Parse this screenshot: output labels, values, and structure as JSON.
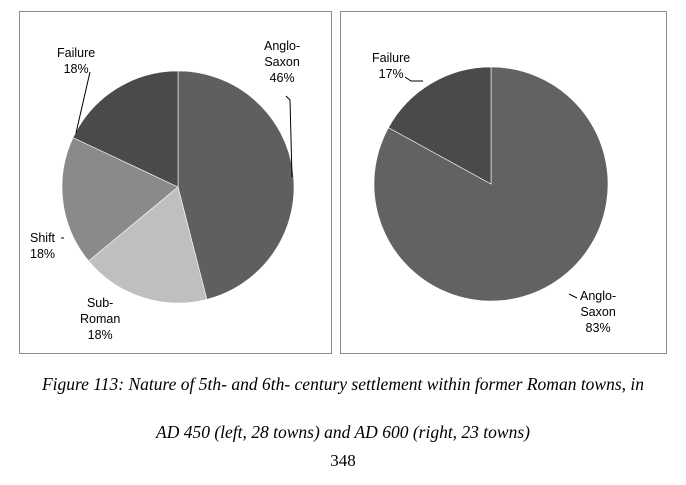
{
  "chart_data": [
    {
      "type": "pie",
      "title": "",
      "slices": [
        {
          "label": "Anglo-Saxon",
          "display": "Anglo-\nSaxon\n46%",
          "value": 46,
          "color": "#5f5f5f"
        },
        {
          "label": "Sub-Roman",
          "display": "Sub-\nRoman\n18%",
          "value": 18,
          "color": "#bfbfbf"
        },
        {
          "label": "Shift",
          "display": "Shift\n18%",
          "value": 18,
          "color": "#8a8a8a"
        },
        {
          "label": "Failure",
          "display": "Failure\n18%",
          "value": 18,
          "color": "#4a4a4a"
        }
      ]
    },
    {
      "type": "pie",
      "title": "",
      "slices": [
        {
          "label": "Anglo-Saxon",
          "display": "Anglo-\nSaxon\n83%",
          "value": 83,
          "color": "#626262"
        },
        {
          "label": "Failure",
          "display": "Failure\n17%",
          "value": 17,
          "color": "#4a4a4a"
        }
      ]
    }
  ],
  "caption": {
    "line1": "Figure 113: Nature of 5th- and 6th- century settlement within former Roman towns, in",
    "line2": "AD 450 (left, 28 towns) and AD 600 (right, 23 towns)"
  },
  "page_number": "348"
}
